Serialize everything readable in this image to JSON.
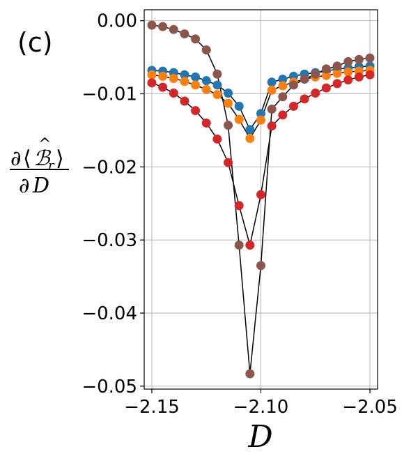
{
  "panel_label": "(c)",
  "chart_data": {
    "type": "scatter",
    "title": "",
    "xlabel": "D",
    "ylabel": "∂⟨B̂_r⟩/∂D",
    "ylabel_parts": {
      "numerator_partial": "∂",
      "numerator_open": "⟨",
      "numerator_symbol": "ℬ",
      "numerator_hat": "^",
      "numerator_sub": "r",
      "numerator_close": "⟩",
      "denominator_partial": "∂",
      "denominator_symbol": "D"
    },
    "xlim": [
      -2.1535,
      -2.0465
    ],
    "ylim": [
      -0.0504,
      0.0015
    ],
    "x_ticks": [
      -2.15,
      -2.1,
      -2.05
    ],
    "x_tick_labels": [
      "−2.15",
      "−2.10",
      "−2.05"
    ],
    "y_ticks": [
      0.0,
      -0.01,
      -0.02,
      -0.03,
      -0.04,
      -0.05
    ],
    "y_tick_labels": [
      "0.00",
      "−0.01",
      "−0.02",
      "−0.03",
      "−0.04",
      "−0.05"
    ],
    "grid": true,
    "legend": "none",
    "series": [
      {
        "color": "#1f77b4",
        "x": [
          -2.15,
          -2.145,
          -2.14,
          -2.135,
          -2.13,
          -2.125,
          -2.12,
          -2.115,
          -2.11,
          -2.105,
          -2.1,
          -2.095,
          -2.09,
          -2.085,
          -2.08,
          -2.075,
          -2.07,
          -2.065,
          -2.06,
          -2.055,
          -2.05
        ],
        "y": [
          -0.0068,
          -0.0069,
          -0.0071,
          -0.0074,
          -0.0077,
          -0.0082,
          -0.0088,
          -0.0099,
          -0.0117,
          -0.0149,
          -0.0127,
          -0.0084,
          -0.008,
          -0.0076,
          -0.0073,
          -0.0071,
          -0.0069,
          -0.0066,
          -0.0065,
          -0.0063,
          -0.0062
        ]
      },
      {
        "color": "#ff7f0e",
        "x": [
          -2.15,
          -2.145,
          -2.14,
          -2.135,
          -2.13,
          -2.125,
          -2.12,
          -2.115,
          -2.11,
          -2.105,
          -2.1,
          -2.095,
          -2.09,
          -2.085,
          -2.08,
          -2.075,
          -2.07,
          -2.065,
          -2.06,
          -2.055,
          -2.05
        ],
        "y": [
          -0.0074,
          -0.0076,
          -0.0079,
          -0.0083,
          -0.0088,
          -0.0094,
          -0.0101,
          -0.0113,
          -0.0135,
          -0.0161,
          -0.0136,
          -0.0095,
          -0.0089,
          -0.0084,
          -0.008,
          -0.0077,
          -0.0075,
          -0.0072,
          -0.007,
          -0.0069,
          -0.0068
        ]
      },
      {
        "color": "#d62728",
        "x": [
          -2.15,
          -2.145,
          -2.14,
          -2.135,
          -2.13,
          -2.125,
          -2.12,
          -2.115,
          -2.11,
          -2.105,
          -2.1,
          -2.095,
          -2.09,
          -2.085,
          -2.08,
          -2.075,
          -2.07,
          -2.065,
          -2.06,
          -2.055,
          -2.05
        ],
        "y": [
          -0.0085,
          -0.0091,
          -0.0099,
          -0.011,
          -0.0123,
          -0.014,
          -0.0162,
          -0.0194,
          -0.0253,
          -0.0307,
          -0.0238,
          -0.0144,
          -0.0129,
          -0.0117,
          -0.0107,
          -0.0099,
          -0.0092,
          -0.0086,
          -0.0081,
          -0.0077,
          -0.0074
        ]
      },
      {
        "color": "#8c564b",
        "x": [
          -2.15,
          -2.145,
          -2.14,
          -2.135,
          -2.13,
          -2.125,
          -2.12,
          -2.115,
          -2.11,
          -2.105,
          -2.1,
          -2.095,
          -2.09,
          -2.085,
          -2.08,
          -2.075,
          -2.07,
          -2.065,
          -2.06,
          -2.055,
          -2.05
        ],
        "y": [
          -0.0006,
          -0.0008,
          -0.0012,
          -0.0018,
          -0.0025,
          -0.004,
          -0.0073,
          -0.0143,
          -0.0307,
          -0.0483,
          -0.0335,
          -0.0121,
          -0.0104,
          -0.0088,
          -0.008,
          -0.0073,
          -0.0066,
          -0.0062,
          -0.0056,
          -0.0053,
          -0.0051
        ]
      }
    ]
  }
}
